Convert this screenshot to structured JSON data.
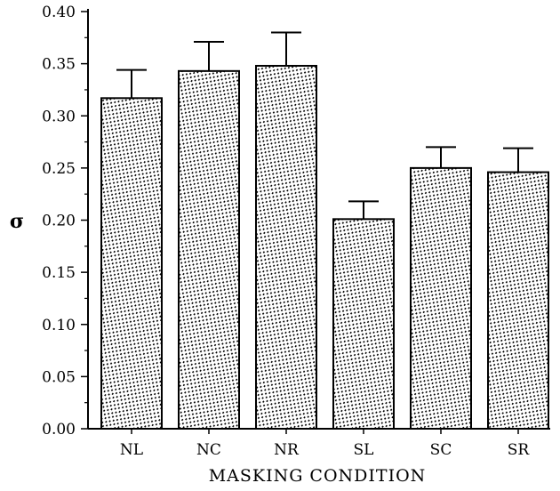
{
  "chart_data": {
    "type": "bar",
    "title": "",
    "xlabel": "MASKING CONDITION",
    "ylabel": "σ",
    "categories": [
      "NL",
      "NC",
      "NR",
      "SL",
      "SC",
      "SR"
    ],
    "values": [
      0.317,
      0.343,
      0.348,
      0.201,
      0.25,
      0.246
    ],
    "errors": [
      0.027,
      0.028,
      0.032,
      0.017,
      0.02,
      0.023
    ],
    "ylim": [
      0,
      0.4
    ],
    "yticks": [
      "0.00",
      "0.05",
      "0.10",
      "0.15",
      "0.20",
      "0.25",
      "0.30",
      "0.35",
      "0.40"
    ],
    "grid": false,
    "legend": "none",
    "bar_pattern": "dotted-hatch"
  }
}
